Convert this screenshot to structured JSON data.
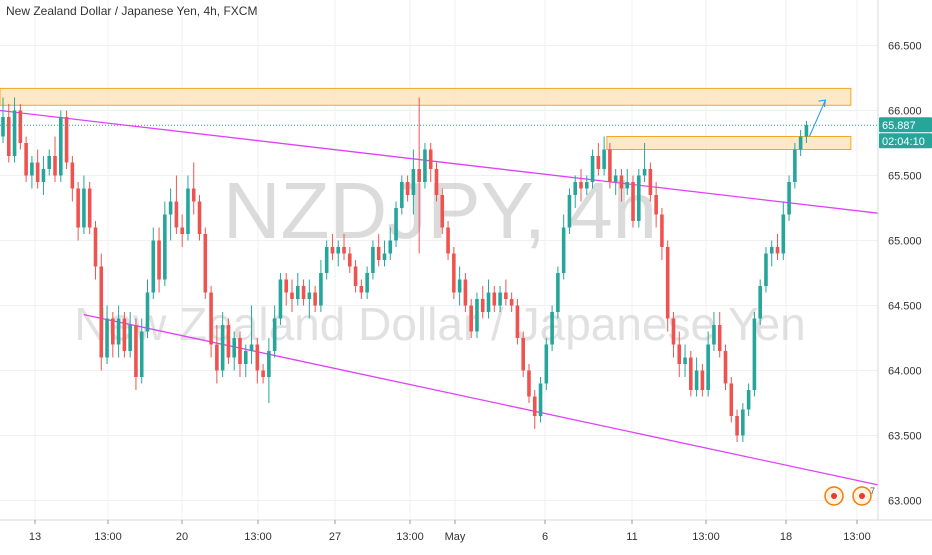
{
  "title": "New Zealand Dollar / Japanese Yen, 4h, FXCM",
  "colors": {
    "up": "#26a69a",
    "down": "#ef5350",
    "channel": "#e040fb",
    "zone_fill": "#fde3b6",
    "zone_stroke": "#f5a623",
    "price_line": "#26a69a",
    "grid": "#eef0f3",
    "watermark": "#bdbdbd",
    "arrow": "#2196f3"
  },
  "chart_data": {
    "type": "candlestick",
    "watermark": {
      "symbol": "NZDJPY, 4h",
      "name": "New Zealand Dollar / Japanese Yen"
    },
    "ylim": [
      62.85,
      66.85
    ],
    "x_ticks": [
      "13",
      "13:00",
      "20",
      "13:00",
      "27",
      "13:00",
      "May",
      "6",
      "11",
      "13:00",
      "18",
      "13:00"
    ],
    "y_ticks": [
      "63.000",
      "63.500",
      "64.000",
      "64.500",
      "65.000",
      "65.500",
      "66.000",
      "66.500"
    ],
    "last_price": {
      "value": 65.887,
      "label": "65.887",
      "countdown": "02:04:10"
    },
    "resistance_zones": [
      {
        "from_bar": 0,
        "to_bar": 146,
        "low": 66.04,
        "high": 66.17
      },
      {
        "from_bar": 105,
        "to_bar": 146,
        "low": 65.7,
        "high": 65.8
      }
    ],
    "channel_lines": [
      {
        "x1": 0,
        "y1": 66.0,
        "x2": 146,
        "y2": 65.21
      },
      {
        "x1": 14,
        "y1": 64.43,
        "x2": 146,
        "y2": 63.12
      }
    ],
    "trend_arrow": {
      "from": 65.8,
      "to": 66.08
    },
    "candles": [
      [
        65.8,
        66.1,
        65.75,
        65.95
      ],
      [
        65.95,
        66.05,
        65.6,
        65.65
      ],
      [
        65.65,
        66.1,
        65.6,
        66.0
      ],
      [
        66.0,
        66.05,
        65.7,
        65.75
      ],
      [
        65.75,
        65.8,
        65.45,
        65.5
      ],
      [
        65.5,
        65.65,
        65.4,
        65.6
      ],
      [
        65.6,
        65.7,
        65.4,
        65.45
      ],
      [
        65.45,
        65.65,
        65.35,
        65.55
      ],
      [
        65.55,
        65.7,
        65.5,
        65.65
      ],
      [
        65.65,
        65.8,
        65.45,
        65.5
      ],
      [
        65.5,
        66.0,
        65.45,
        65.95
      ],
      [
        65.95,
        66.0,
        65.55,
        65.6
      ],
      [
        65.6,
        65.65,
        65.3,
        65.4
      ],
      [
        65.4,
        65.45,
        65.0,
        65.1
      ],
      [
        65.1,
        65.5,
        65.05,
        65.4
      ],
      [
        65.4,
        65.45,
        65.05,
        65.1
      ],
      [
        65.1,
        65.15,
        64.7,
        64.8
      ],
      [
        64.8,
        64.9,
        64.0,
        64.1
      ],
      [
        64.1,
        64.5,
        64.05,
        64.4
      ],
      [
        64.4,
        64.45,
        64.1,
        64.2
      ],
      [
        64.2,
        64.5,
        64.1,
        64.4
      ],
      [
        64.4,
        64.45,
        64.1,
        64.15
      ],
      [
        64.15,
        64.45,
        64.1,
        64.35
      ],
      [
        64.35,
        64.4,
        63.85,
        63.95
      ],
      [
        63.95,
        64.4,
        63.9,
        64.3
      ],
      [
        64.3,
        64.7,
        64.25,
        64.6
      ],
      [
        64.6,
        65.1,
        64.55,
        65.0
      ],
      [
        65.0,
        65.1,
        64.6,
        64.7
      ],
      [
        64.7,
        65.3,
        64.65,
        65.2
      ],
      [
        65.2,
        65.4,
        65.0,
        65.3
      ],
      [
        65.3,
        65.5,
        65.05,
        65.1
      ],
      [
        65.1,
        65.2,
        64.95,
        65.05
      ],
      [
        65.05,
        65.5,
        65.0,
        65.4
      ],
      [
        65.4,
        65.6,
        65.2,
        65.3
      ],
      [
        65.3,
        65.35,
        65.0,
        65.05
      ],
      [
        65.05,
        65.1,
        64.55,
        64.6
      ],
      [
        64.6,
        64.65,
        64.1,
        64.2
      ],
      [
        64.2,
        64.35,
        63.9,
        64.0
      ],
      [
        64.0,
        64.45,
        63.95,
        64.35
      ],
      [
        64.35,
        64.4,
        64.05,
        64.1
      ],
      [
        64.1,
        64.3,
        64.0,
        64.25
      ],
      [
        64.25,
        64.3,
        63.95,
        64.05
      ],
      [
        64.05,
        64.2,
        63.95,
        64.15
      ],
      [
        64.15,
        64.5,
        64.05,
        64.2
      ],
      [
        64.2,
        64.25,
        63.9,
        64.0
      ],
      [
        64.0,
        64.05,
        63.9,
        63.95
      ],
      [
        63.95,
        64.25,
        63.75,
        64.15
      ],
      [
        64.15,
        64.5,
        64.1,
        64.4
      ],
      [
        64.4,
        64.75,
        64.35,
        64.7
      ],
      [
        64.7,
        64.75,
        64.5,
        64.6
      ],
      [
        64.6,
        64.7,
        64.45,
        64.55
      ],
      [
        64.55,
        64.75,
        64.5,
        64.65
      ],
      [
        64.65,
        64.7,
        64.5,
        64.55
      ],
      [
        64.55,
        64.7,
        64.4,
        64.6
      ],
      [
        64.6,
        64.65,
        64.45,
        64.5
      ],
      [
        64.5,
        64.85,
        64.45,
        64.75
      ],
      [
        64.75,
        65.0,
        64.7,
        64.95
      ],
      [
        64.95,
        65.05,
        64.85,
        64.9
      ],
      [
        64.9,
        65.0,
        64.8,
        64.95
      ],
      [
        64.95,
        65.05,
        64.85,
        64.9
      ],
      [
        64.9,
        64.95,
        64.75,
        64.8
      ],
      [
        64.8,
        64.85,
        64.6,
        64.65
      ],
      [
        64.65,
        64.7,
        64.55,
        64.6
      ],
      [
        64.6,
        64.8,
        64.55,
        64.75
      ],
      [
        64.75,
        65.0,
        64.7,
        64.95
      ],
      [
        64.95,
        65.05,
        64.8,
        64.85
      ],
      [
        64.85,
        65.0,
        64.8,
        64.9
      ],
      [
        64.9,
        65.1,
        64.85,
        65.0
      ],
      [
        65.0,
        65.3,
        64.95,
        65.25
      ],
      [
        65.25,
        65.5,
        65.2,
        65.45
      ],
      [
        65.45,
        65.5,
        65.3,
        65.35
      ],
      [
        65.35,
        65.7,
        65.2,
        65.55
      ],
      [
        65.55,
        66.1,
        64.9,
        65.45
      ],
      [
        65.45,
        65.75,
        65.4,
        65.7
      ],
      [
        65.7,
        65.75,
        65.45,
        65.55
      ],
      [
        65.55,
        65.6,
        65.3,
        65.35
      ],
      [
        65.35,
        65.4,
        65.05,
        65.1
      ],
      [
        65.1,
        65.15,
        64.85,
        64.9
      ],
      [
        64.9,
        64.95,
        64.55,
        64.6
      ],
      [
        64.6,
        64.8,
        64.5,
        64.7
      ],
      [
        64.7,
        64.75,
        64.45,
        64.5
      ],
      [
        64.5,
        64.55,
        64.25,
        64.3
      ],
      [
        64.3,
        64.6,
        64.25,
        64.55
      ],
      [
        64.55,
        64.65,
        64.4,
        64.45
      ],
      [
        64.45,
        64.7,
        64.4,
        64.6
      ],
      [
        64.6,
        64.65,
        64.45,
        64.5
      ],
      [
        64.5,
        64.65,
        64.45,
        64.6
      ],
      [
        64.6,
        64.7,
        64.5,
        64.55
      ],
      [
        64.55,
        64.6,
        64.45,
        64.5
      ],
      [
        64.5,
        64.55,
        64.2,
        64.25
      ],
      [
        64.25,
        64.3,
        63.95,
        64.0
      ],
      [
        64.0,
        64.05,
        63.75,
        63.8
      ],
      [
        63.8,
        63.85,
        63.55,
        63.65
      ],
      [
        63.65,
        63.95,
        63.6,
        63.9
      ],
      [
        63.9,
        64.25,
        63.85,
        64.2
      ],
      [
        64.2,
        64.5,
        64.15,
        64.45
      ],
      [
        64.45,
        64.8,
        64.4,
        64.75
      ],
      [
        64.75,
        65.2,
        64.7,
        65.1
      ],
      [
        65.1,
        65.4,
        65.05,
        65.35
      ],
      [
        65.35,
        65.5,
        65.25,
        65.45
      ],
      [
        65.45,
        65.55,
        65.3,
        65.4
      ],
      [
        65.4,
        65.5,
        65.35,
        65.45
      ],
      [
        65.45,
        65.7,
        65.4,
        65.65
      ],
      [
        65.65,
        65.75,
        65.5,
        65.55
      ],
      [
        65.55,
        65.8,
        65.5,
        65.7
      ],
      [
        65.7,
        65.75,
        65.4,
        65.45
      ],
      [
        65.45,
        65.55,
        65.35,
        65.5
      ],
      [
        65.5,
        65.55,
        65.3,
        65.4
      ],
      [
        65.4,
        65.55,
        65.35,
        65.45
      ],
      [
        65.45,
        65.5,
        65.1,
        65.15
      ],
      [
        65.15,
        65.55,
        65.1,
        65.5
      ],
      [
        65.5,
        65.75,
        65.45,
        65.55
      ],
      [
        65.55,
        65.6,
        65.3,
        65.35
      ],
      [
        65.35,
        65.45,
        65.1,
        65.2
      ],
      [
        65.2,
        65.25,
        64.85,
        64.95
      ],
      [
        64.95,
        65.0,
        64.3,
        64.4
      ],
      [
        64.4,
        64.45,
        64.1,
        64.2
      ],
      [
        64.2,
        64.3,
        63.95,
        64.05
      ],
      [
        64.05,
        64.2,
        63.95,
        64.1
      ],
      [
        64.1,
        64.15,
        63.8,
        63.85
      ],
      [
        63.85,
        64.1,
        63.8,
        64.0
      ],
      [
        64.0,
        64.05,
        63.8,
        63.85
      ],
      [
        63.85,
        64.3,
        63.8,
        64.2
      ],
      [
        64.2,
        64.45,
        64.15,
        64.35
      ],
      [
        64.35,
        64.45,
        64.1,
        64.15
      ],
      [
        64.15,
        64.2,
        63.85,
        63.9
      ],
      [
        63.9,
        63.95,
        63.6,
        63.65
      ],
      [
        63.65,
        63.7,
        63.45,
        63.5
      ],
      [
        63.5,
        63.75,
        63.45,
        63.7
      ],
      [
        63.7,
        63.9,
        63.65,
        63.85
      ],
      [
        63.85,
        64.45,
        63.8,
        64.4
      ],
      [
        64.4,
        64.7,
        64.35,
        64.65
      ],
      [
        64.65,
        64.95,
        64.6,
        64.9
      ],
      [
        64.9,
        65.0,
        64.8,
        64.95
      ],
      [
        64.95,
        65.05,
        64.85,
        64.9
      ],
      [
        64.9,
        65.3,
        64.85,
        65.2
      ],
      [
        65.2,
        65.5,
        65.15,
        65.45
      ],
      [
        65.45,
        65.75,
        65.4,
        65.7
      ],
      [
        65.7,
        65.85,
        65.65,
        65.8
      ],
      [
        65.8,
        65.92,
        65.75,
        65.887
      ]
    ]
  }
}
